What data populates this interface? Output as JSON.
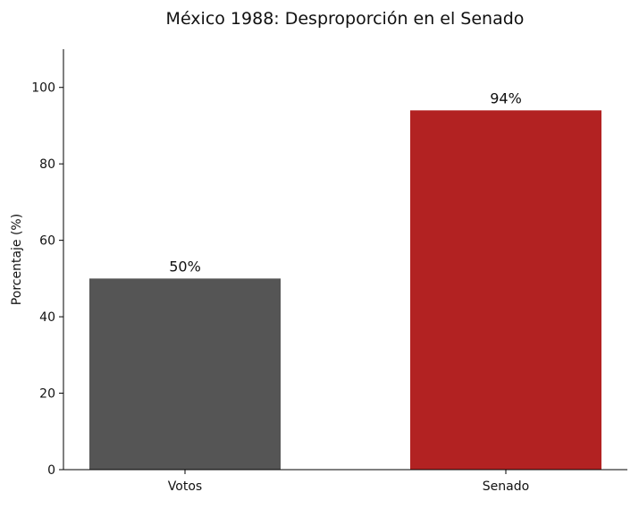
{
  "chart_data": {
    "type": "bar",
    "title": "México 1988: Desproporción en el Senado",
    "xlabel": "",
    "ylabel": "Porcentaje (%)",
    "categories": [
      "Votos",
      "Senado"
    ],
    "values": [
      50,
      94
    ],
    "data_labels": [
      "50%",
      "94%"
    ],
    "colors": [
      "#555555",
      "#b22222"
    ],
    "ylim": [
      0,
      110
    ],
    "yticks": [
      0,
      20,
      40,
      60,
      80,
      100
    ],
    "grid": false,
    "legend": "none"
  }
}
